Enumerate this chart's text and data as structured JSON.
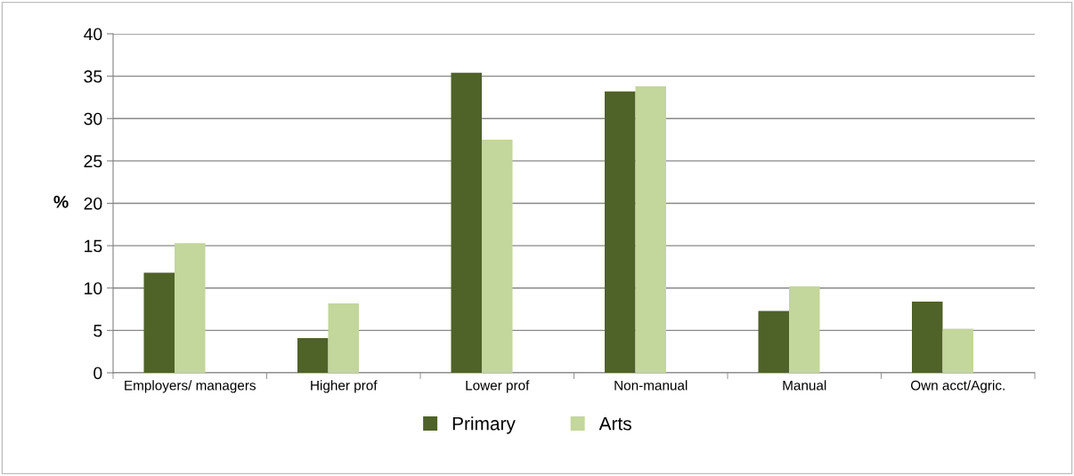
{
  "chart_data": {
    "type": "bar",
    "ylabel": "%",
    "categories": [
      "Employers/ managers",
      "Higher prof",
      "Lower prof",
      "Non-manual",
      "Manual",
      "Own acct/Agric."
    ],
    "series": [
      {
        "name": "Primary",
        "color": "#4f6228",
        "values": [
          11.8,
          4.1,
          35.4,
          33.2,
          7.3,
          8.4
        ]
      },
      {
        "name": "Arts",
        "color": "#c3d69b",
        "values": [
          15.3,
          8.2,
          27.5,
          33.8,
          10.2,
          5.2
        ]
      }
    ],
    "ylim": [
      0,
      40
    ],
    "yticks": [
      0,
      5,
      10,
      15,
      20,
      25,
      30,
      35,
      40
    ],
    "grid": "y",
    "legend": "bottom"
  }
}
